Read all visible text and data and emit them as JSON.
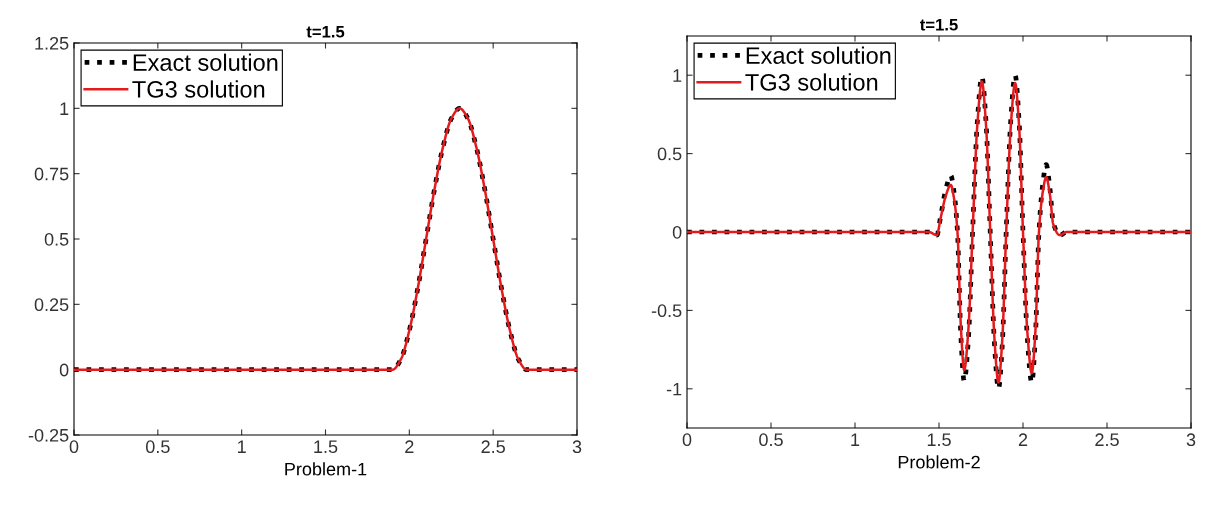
{
  "chart_data": [
    {
      "type": "line",
      "title": "t=1.5",
      "xlabel": "Problem-1",
      "xlim": [
        0,
        3
      ],
      "xticks": [
        0,
        0.5,
        1,
        1.5,
        2,
        2.5,
        3
      ],
      "ylim": [
        -0.25,
        1.25
      ],
      "yticks": [
        -0.25,
        0,
        0.25,
        0.5,
        0.75,
        1,
        1.25
      ],
      "legend": "top left",
      "grid": false,
      "series": [
        {
          "name": "Exact solution",
          "color": "#000000",
          "line_style": "dotted",
          "x": [
            0,
            1.9,
            1.95,
            2.0,
            2.05,
            2.1,
            2.15,
            2.2,
            2.25,
            2.3,
            2.35,
            2.4,
            2.45,
            2.5,
            2.55,
            2.6,
            2.65,
            2.7,
            3
          ],
          "values": [
            0,
            0,
            0.04,
            0.15,
            0.31,
            0.5,
            0.69,
            0.85,
            0.96,
            1,
            0.96,
            0.85,
            0.69,
            0.5,
            0.31,
            0.15,
            0.04,
            0,
            0
          ]
        },
        {
          "name": "TG3 solution",
          "color": "#e41a1c",
          "line_style": "solid",
          "x": [
            0,
            1.9,
            1.95,
            2.0,
            2.05,
            2.1,
            2.15,
            2.2,
            2.25,
            2.3,
            2.35,
            2.4,
            2.45,
            2.5,
            2.55,
            2.6,
            2.65,
            2.7,
            3
          ],
          "values": [
            0,
            0,
            0.04,
            0.15,
            0.31,
            0.5,
            0.69,
            0.85,
            0.96,
            1,
            0.96,
            0.85,
            0.69,
            0.5,
            0.31,
            0.15,
            0.04,
            0,
            0
          ]
        }
      ]
    },
    {
      "type": "line",
      "title": "t=1.5",
      "xlabel": "Problem-2",
      "xlim": [
        0,
        3
      ],
      "xticks": [
        0,
        0.5,
        1,
        1.5,
        2,
        2.5,
        3
      ],
      "ylim": [
        -1.25,
        1.25
      ],
      "yticks": [
        -1,
        -0.5,
        0,
        0.5,
        1
      ],
      "legend": "top left",
      "grid": false,
      "series": [
        {
          "name": "Exact solution",
          "color": "#000000",
          "line_style": "dotted",
          "x": [
            0,
            1.44,
            1.487,
            1.51,
            1.54,
            1.57,
            1.59,
            1.61,
            1.63,
            1.65,
            1.675,
            1.7,
            1.728,
            1.755,
            1.78,
            1.805,
            1.83,
            1.854,
            1.877,
            1.9,
            1.927,
            1.953,
            1.977,
            2.0,
            2.026,
            2.052,
            2.074,
            2.095,
            2.117,
            2.138,
            2.16,
            2.18,
            2.22,
            2.26,
            3
          ],
          "values": [
            0,
            0,
            -0.02,
            0.1,
            0.27,
            0.36,
            0.25,
            0,
            -0.66,
            -0.95,
            -0.68,
            0,
            0.7,
            0.99,
            0.7,
            0,
            -0.71,
            -1.0,
            -0.71,
            0,
            0.71,
            1.0,
            0.7,
            0,
            -0.68,
            -0.96,
            -0.66,
            0,
            0.3,
            0.43,
            0.28,
            0.06,
            -0.02,
            0,
            0
          ]
        },
        {
          "name": "TG3 solution",
          "color": "#e41a1c",
          "line_style": "solid",
          "x": [
            0,
            1.44,
            1.487,
            1.51,
            1.54,
            1.57,
            1.59,
            1.61,
            1.63,
            1.65,
            1.675,
            1.7,
            1.728,
            1.755,
            1.78,
            1.805,
            1.83,
            1.854,
            1.877,
            1.9,
            1.927,
            1.953,
            1.977,
            2.0,
            2.026,
            2.052,
            2.074,
            2.095,
            2.117,
            2.138,
            2.16,
            2.18,
            2.22,
            2.26,
            3
          ],
          "values": [
            0,
            0,
            -0.02,
            0.09,
            0.23,
            0.3,
            0.21,
            0,
            -0.6,
            -0.88,
            -0.62,
            0,
            0.68,
            0.96,
            0.68,
            0,
            -0.68,
            -0.96,
            -0.68,
            0,
            0.67,
            0.95,
            0.67,
            0,
            -0.64,
            -0.9,
            -0.63,
            0,
            0.25,
            0.35,
            0.24,
            0.05,
            -0.02,
            0,
            0
          ]
        }
      ]
    }
  ]
}
